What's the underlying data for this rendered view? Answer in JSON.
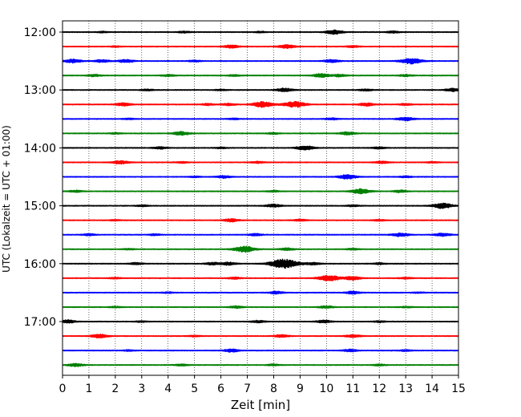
{
  "chart_data": {
    "type": "line",
    "title": "",
    "xlabel": "Zeit  [min]",
    "ylabel": "UTC (Lokalzeit = UTC + 01:00)",
    "xlim": [
      0,
      15
    ],
    "x_ticks": [
      "0",
      "1",
      "2",
      "3",
      "4",
      "5",
      "6",
      "7",
      "8",
      "9",
      "10",
      "11",
      "12",
      "13",
      "14",
      "15"
    ],
    "y_tick_labels": [
      "12:00",
      "13:00",
      "14:00",
      "15:00",
      "16:00",
      "17:00"
    ],
    "trace_interval_min": 15,
    "trace_colors": [
      "#000000",
      "#ff0000",
      "#0000ff",
      "#008000"
    ],
    "grid": "vertical-dotted",
    "series": [
      {
        "start": "12:00",
        "events": [
          [
            4.6,
            0.25
          ],
          [
            10.3,
            0.7
          ],
          [
            12.5,
            0.3
          ],
          [
            1.5,
            0.2
          ],
          [
            7.5,
            0.2
          ]
        ]
      },
      {
        "start": "12:15",
        "events": [
          [
            6.4,
            0.5
          ],
          [
            8.5,
            0.6
          ],
          [
            11.0,
            0.3
          ],
          [
            2.0,
            0.2
          ]
        ]
      },
      {
        "start": "12:30",
        "events": [
          [
            0.4,
            0.6
          ],
          [
            1.5,
            0.45
          ],
          [
            2.4,
            0.5
          ],
          [
            10.2,
            0.5
          ],
          [
            13.2,
            1.0
          ],
          [
            5.0,
            0.25
          ]
        ]
      },
      {
        "start": "12:45",
        "events": [
          [
            1.2,
            0.35
          ],
          [
            4.0,
            0.3
          ],
          [
            9.8,
            0.6
          ],
          [
            10.5,
            0.4
          ],
          [
            13.0,
            0.3
          ],
          [
            6.5,
            0.25
          ]
        ]
      },
      {
        "start": "13:00",
        "events": [
          [
            8.4,
            0.6
          ],
          [
            11.5,
            0.3
          ],
          [
            14.8,
            0.5
          ],
          [
            3.2,
            0.25
          ],
          [
            6.0,
            0.2
          ]
        ]
      },
      {
        "start": "13:15",
        "events": [
          [
            2.3,
            0.5
          ],
          [
            5.5,
            0.3
          ],
          [
            6.3,
            0.35
          ],
          [
            7.6,
            1.0
          ],
          [
            8.8,
            1.0
          ],
          [
            11.5,
            0.5
          ],
          [
            13.0,
            0.3
          ]
        ]
      },
      {
        "start": "13:30",
        "events": [
          [
            10.2,
            0.3
          ],
          [
            13.0,
            0.6
          ],
          [
            2.5,
            0.2
          ],
          [
            6.5,
            0.2
          ]
        ]
      },
      {
        "start": "13:45",
        "events": [
          [
            4.5,
            0.6
          ],
          [
            10.8,
            0.5
          ],
          [
            2.0,
            0.2
          ],
          [
            8.0,
            0.25
          ]
        ]
      },
      {
        "start": "14:00",
        "events": [
          [
            3.7,
            0.35
          ],
          [
            9.2,
            0.7
          ],
          [
            12.0,
            0.3
          ],
          [
            6.0,
            0.2
          ]
        ]
      },
      {
        "start": "14:15",
        "events": [
          [
            2.2,
            0.55
          ],
          [
            7.4,
            0.3
          ],
          [
            12.1,
            0.4
          ],
          [
            4.5,
            0.25
          ],
          [
            14.0,
            0.2
          ]
        ]
      },
      {
        "start": "14:30",
        "events": [
          [
            6.1,
            0.4
          ],
          [
            10.8,
            0.75
          ],
          [
            5.0,
            0.2
          ],
          [
            13.0,
            0.25
          ]
        ]
      },
      {
        "start": "14:45",
        "events": [
          [
            0.5,
            0.3
          ],
          [
            11.3,
            0.8
          ],
          [
            12.8,
            0.4
          ],
          [
            8.0,
            0.25
          ]
        ]
      },
      {
        "start": "15:00",
        "events": [
          [
            8.0,
            0.5
          ],
          [
            14.4,
            0.9
          ],
          [
            3.0,
            0.25
          ],
          [
            11.0,
            0.25
          ]
        ]
      },
      {
        "start": "15:15",
        "events": [
          [
            6.4,
            0.5
          ],
          [
            9.0,
            0.3
          ],
          [
            12.0,
            0.25
          ],
          [
            2.0,
            0.2
          ]
        ]
      },
      {
        "start": "15:30",
        "events": [
          [
            1.0,
            0.3
          ],
          [
            7.3,
            0.35
          ],
          [
            12.8,
            0.6
          ],
          [
            14.4,
            0.5
          ],
          [
            3.5,
            0.25
          ]
        ]
      },
      {
        "start": "15:45",
        "events": [
          [
            6.9,
            1.0
          ],
          [
            8.5,
            0.4
          ],
          [
            2.5,
            0.2
          ],
          [
            11.0,
            0.25
          ]
        ]
      },
      {
        "start": "16:00",
        "events": [
          [
            2.8,
            0.35
          ],
          [
            5.7,
            0.4
          ],
          [
            6.3,
            0.5
          ],
          [
            8.4,
            1.6
          ],
          [
            9.5,
            0.4
          ],
          [
            12.0,
            0.25
          ]
        ]
      },
      {
        "start": "16:15",
        "events": [
          [
            10.1,
            1.0
          ],
          [
            11.0,
            0.6
          ],
          [
            6.5,
            0.3
          ],
          [
            13.0,
            0.25
          ],
          [
            2.0,
            0.2
          ]
        ]
      },
      {
        "start": "16:30",
        "events": [
          [
            8.1,
            0.4
          ],
          [
            11.0,
            0.45
          ],
          [
            4.0,
            0.2
          ],
          [
            13.5,
            0.2
          ]
        ]
      },
      {
        "start": "16:45",
        "events": [
          [
            6.6,
            0.35
          ],
          [
            10.0,
            0.4
          ],
          [
            2.0,
            0.2
          ],
          [
            13.0,
            0.2
          ]
        ]
      },
      {
        "start": "17:00",
        "events": [
          [
            0.2,
            0.5
          ],
          [
            7.4,
            0.35
          ],
          [
            9.9,
            0.45
          ],
          [
            3.0,
            0.2
          ],
          [
            12.0,
            0.25
          ]
        ]
      },
      {
        "start": "17:15",
        "events": [
          [
            1.4,
            0.6
          ],
          [
            8.3,
            0.45
          ],
          [
            11.0,
            0.45
          ],
          [
            5.0,
            0.2
          ]
        ]
      },
      {
        "start": "17:30",
        "events": [
          [
            6.4,
            0.5
          ],
          [
            10.9,
            0.4
          ],
          [
            13.0,
            0.25
          ],
          [
            2.5,
            0.2
          ]
        ]
      },
      {
        "start": "17:45",
        "events": [
          [
            0.5,
            0.5
          ],
          [
            4.5,
            0.3
          ],
          [
            8.0,
            0.25
          ],
          [
            12.0,
            0.25
          ]
        ]
      }
    ]
  }
}
